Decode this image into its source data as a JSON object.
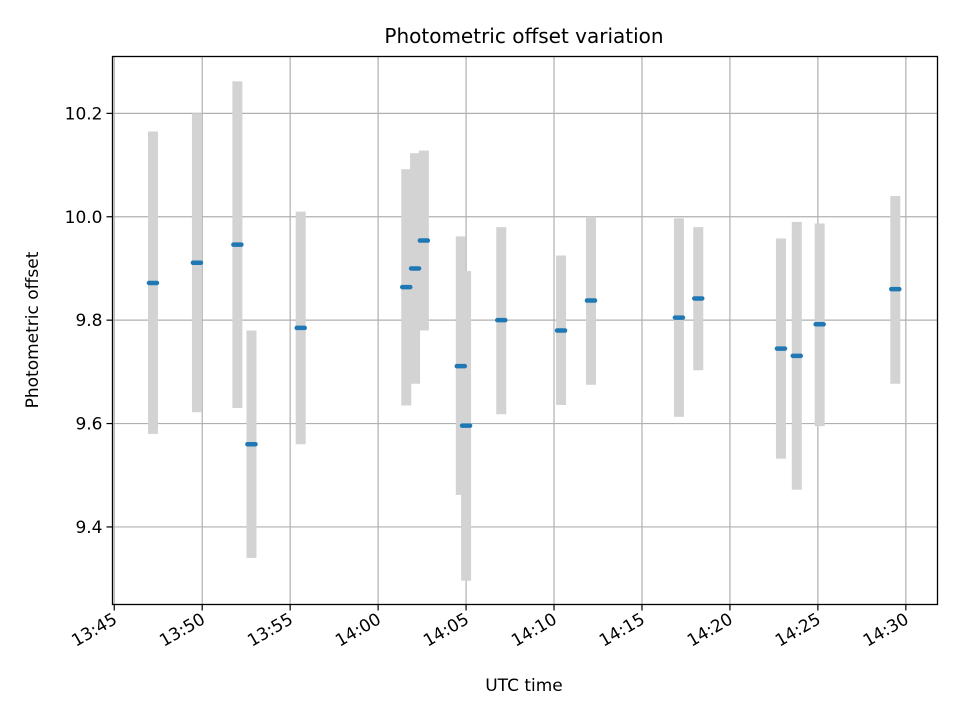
{
  "chart_data": {
    "type": "scatter",
    "title": "Photometric offset variation",
    "xlabel": "UTC time",
    "ylabel": "Photometric offset",
    "x_range": [
      "13:44.9",
      "14:31.8"
    ],
    "xlim_minutes": [
      824.9,
      871.8
    ],
    "ylim": [
      9.25,
      10.31
    ],
    "grid": true,
    "x_ticks": [
      "13:45",
      "13:50",
      "13:55",
      "14:00",
      "14:05",
      "14:10",
      "14:15",
      "14:20",
      "14:25",
      "14:30"
    ],
    "y_ticks": [
      "9.4",
      "9.6",
      "9.8",
      "10.0",
      "10.2"
    ],
    "colors": {
      "points": "#1f77b4",
      "errorbars": "#d3d3d3",
      "grid": "#b0b0b0",
      "axes": "#000000"
    },
    "series": [
      {
        "points": [
          {
            "x": "13:47:12",
            "y": 9.872,
            "y_low": 9.58,
            "y_high": 10.165
          },
          {
            "x": "13:49:42",
            "y": 9.911,
            "y_low": 9.622,
            "y_high": 10.2
          },
          {
            "x": "13:52:00",
            "y": 9.946,
            "y_low": 9.63,
            "y_high": 10.262
          },
          {
            "x": "13:52:48",
            "y": 9.56,
            "y_low": 9.34,
            "y_high": 9.78
          },
          {
            "x": "13:55:36",
            "y": 9.785,
            "y_low": 9.56,
            "y_high": 10.01
          },
          {
            "x": "14:01:36",
            "y": 9.864,
            "y_low": 9.635,
            "y_high": 10.092
          },
          {
            "x": "14:02:06",
            "y": 9.9,
            "y_low": 9.677,
            "y_high": 10.123
          },
          {
            "x": "14:02:36",
            "y": 9.954,
            "y_low": 9.78,
            "y_high": 10.128
          },
          {
            "x": "14:04:42",
            "y": 9.711,
            "y_low": 9.462,
            "y_high": 9.962
          },
          {
            "x": "14:05:00",
            "y": 9.596,
            "y_low": 9.296,
            "y_high": 9.895
          },
          {
            "x": "14:07:00",
            "y": 9.8,
            "y_low": 9.618,
            "y_high": 9.98
          },
          {
            "x": "14:10:24",
            "y": 9.78,
            "y_low": 9.636,
            "y_high": 9.925
          },
          {
            "x": "14:12:06",
            "y": 9.838,
            "y_low": 9.675,
            "y_high": 10.0
          },
          {
            "x": "14:17:06",
            "y": 9.805,
            "y_low": 9.613,
            "y_high": 9.997
          },
          {
            "x": "14:18:12",
            "y": 9.842,
            "y_low": 9.703,
            "y_high": 9.98
          },
          {
            "x": "14:22:54",
            "y": 9.745,
            "y_low": 9.532,
            "y_high": 9.958
          },
          {
            "x": "14:23:48",
            "y": 9.731,
            "y_low": 9.472,
            "y_high": 9.99
          },
          {
            "x": "14:25:06",
            "y": 9.792,
            "y_low": 9.595,
            "y_high": 9.987
          },
          {
            "x": "14:29:24",
            "y": 9.86,
            "y_low": 9.677,
            "y_high": 10.04
          }
        ]
      }
    ]
  }
}
